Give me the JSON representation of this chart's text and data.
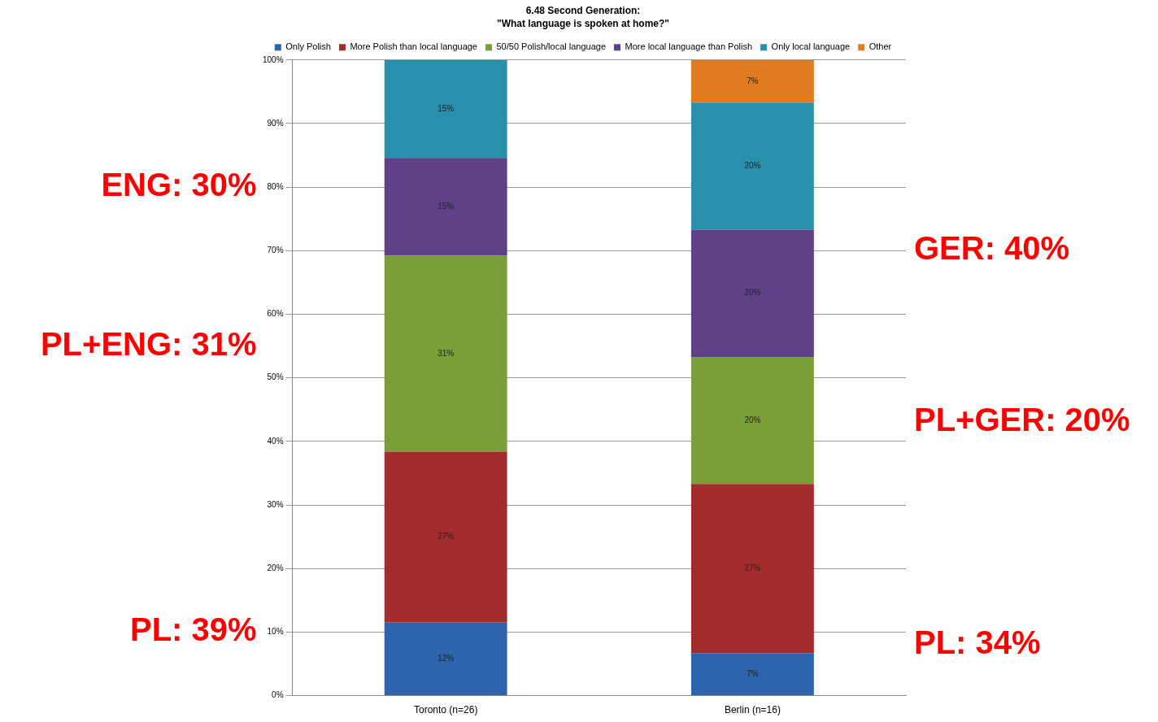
{
  "chart_data": {
    "type": "bar",
    "stacked": true,
    "title": "6.48 Second Generation:",
    "subtitle": "\"What language is spoken at home?\"",
    "categories": [
      "Toronto (n=26)",
      "Berlin (n=16)"
    ],
    "series": [
      {
        "name": "Only Polish",
        "color": "#2e64ad",
        "values": [
          11.5,
          6.7
        ],
        "value_labels": [
          "12%",
          "7%"
        ]
      },
      {
        "name": "More Polish than local language",
        "color": "#a52c2c",
        "values": [
          26.9,
          26.6
        ],
        "value_labels": [
          "27%",
          "27%"
        ]
      },
      {
        "name": "50/50 Polish/local language",
        "color": "#7a9e38",
        "values": [
          30.8,
          20
        ],
        "value_labels": [
          "31%",
          "20%"
        ]
      },
      {
        "name": "More local language than Polish",
        "color": "#5e4187",
        "values": [
          15.4,
          20
        ],
        "value_labels": [
          "15%",
          "20%"
        ]
      },
      {
        "name": "Only local language",
        "color": "#2890ab",
        "values": [
          15.4,
          20
        ],
        "value_labels": [
          "15%",
          "20%"
        ]
      },
      {
        "name": "Other",
        "color": "#e07b22",
        "values": [
          null,
          6.7
        ],
        "value_labels": [
          null,
          "7%"
        ]
      }
    ],
    "ylim": [
      0,
      100
    ],
    "yticks": [
      {
        "value": 0,
        "label": "0%"
      },
      {
        "value": 10,
        "label": "10%"
      },
      {
        "value": 20,
        "label": "20%"
      },
      {
        "value": 30,
        "label": "30%"
      },
      {
        "value": 40,
        "label": "40%"
      },
      {
        "value": 50,
        "label": "50%"
      },
      {
        "value": 60,
        "label": "60%"
      },
      {
        "value": 70,
        "label": "70%"
      },
      {
        "value": 80,
        "label": "80%"
      },
      {
        "value": 90,
        "label": "90%"
      },
      {
        "value": 100,
        "label": "100%"
      }
    ],
    "grid": "y",
    "legend": "top",
    "annotations": [
      "ENG: 30%",
      "PL+ENG: 31%",
      "PL: 39%",
      "GER: 40%",
      "PL+GER: 20%",
      "PL: 34%"
    ]
  }
}
